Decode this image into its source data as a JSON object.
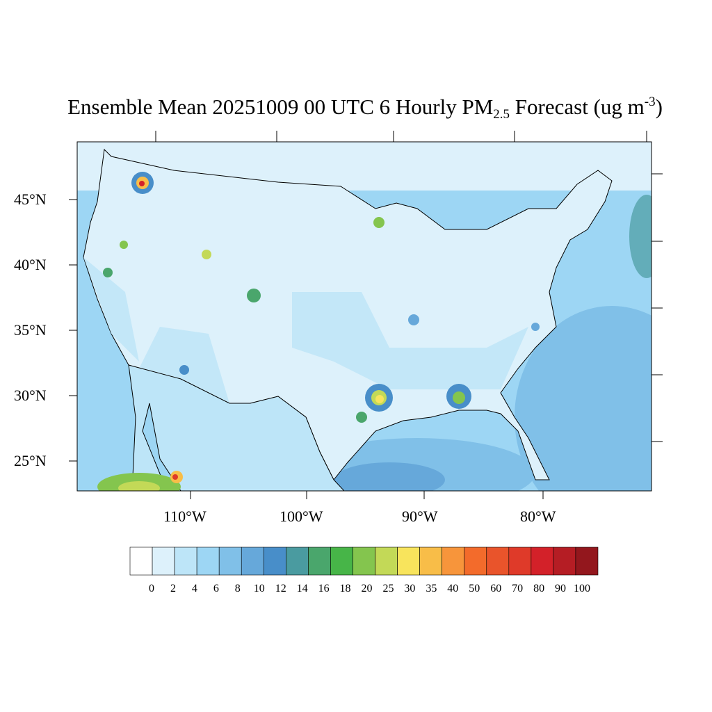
{
  "title": {
    "main": "Ensemble Mean 20251009 00 UTC 6 Hourly PM",
    "subscript": "2.5",
    "tail": " Forecast (ug m",
    "superscript": "-3",
    "close": ")"
  },
  "map": {
    "lat_labels": [
      "45°N",
      "40°N",
      "35°N",
      "30°N",
      "25°N"
    ],
    "lon_labels": [
      "110°W",
      "100°W",
      "90°W",
      "80°W"
    ]
  },
  "colorbar": {
    "labels": [
      "0",
      "2",
      "4",
      "6",
      "8",
      "10",
      "12",
      "14",
      "16",
      "18",
      "20",
      "25",
      "30",
      "35",
      "40",
      "50",
      "60",
      "70",
      "80",
      "90",
      "100"
    ],
    "colors": [
      "#ffffff",
      "#ddf1fb",
      "#bde5f8",
      "#9dd6f4",
      "#80c0e8",
      "#66a8da",
      "#488ec9",
      "#4a9ba0",
      "#4aa66c",
      "#47b548",
      "#84c54e",
      "#c3d957",
      "#f8e45c",
      "#f8bd48",
      "#f7953b",
      "#f36b2b",
      "#e9542b",
      "#df3a29",
      "#d32129",
      "#b51d24",
      "#93171d"
    ]
  }
}
